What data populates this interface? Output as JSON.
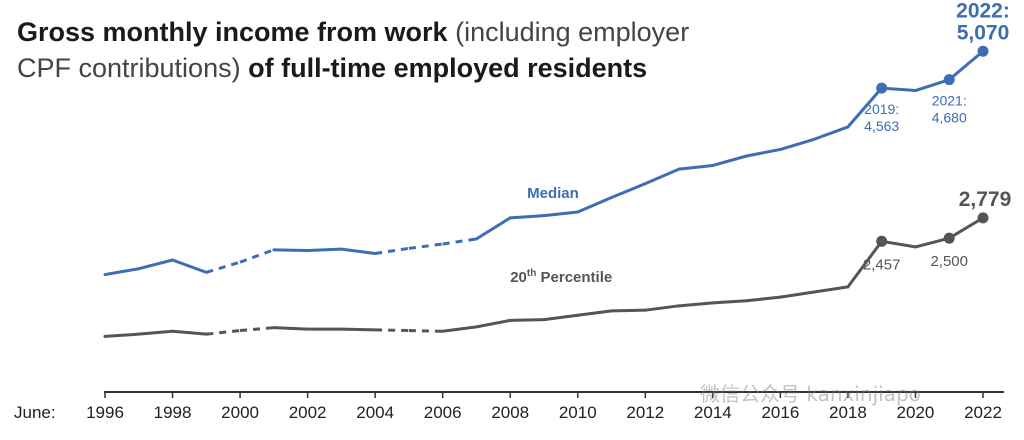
{
  "title": {
    "part1": "Gross monthly income from work",
    "part2": " (including employer CPF contributions) ",
    "part3": "of full-time employed residents"
  },
  "watermark": "微信公众号 kanxinjiapo",
  "chart_data": {
    "type": "line",
    "title": "Gross monthly income from work (including employer CPF contributions) of full-time employed residents",
    "x_axis_label": "June:",
    "tick_labels": [
      "1996",
      "1998",
      "2000",
      "2002",
      "2004",
      "2006",
      "2008",
      "2010",
      "2012",
      "2014",
      "2016",
      "2018",
      "2020",
      "2022"
    ],
    "xlim": [
      1996,
      2022
    ],
    "ylim": [
      0,
      5500
    ],
    "grid": false,
    "series": [
      {
        "name": "Median",
        "color": "#3d6db3",
        "x": [
          1996,
          1997,
          1998,
          1999,
          2000,
          2001,
          2002,
          2003,
          2004,
          2005,
          2006,
          2007,
          2008,
          2009,
          2010,
          2011,
          2012,
          2013,
          2014,
          2015,
          2016,
          2017,
          2018,
          2019,
          2020,
          2021,
          2022
        ],
        "values": [
          2000,
          2080,
          2200,
          2030,
          2170,
          2340,
          2330,
          2350,
          2290,
          2360,
          2420,
          2490,
          2780,
          2810,
          2860,
          3060,
          3250,
          3450,
          3500,
          3630,
          3720,
          3860,
          4030,
          4563,
          4530,
          4680,
          5070
        ],
        "dashed_segments": [
          [
            1999,
            2001
          ],
          [
            2004,
            2007
          ]
        ],
        "markers": [
          {
            "x": 2019,
            "label_year": "2019:",
            "label_value": "4,563",
            "pos": "below"
          },
          {
            "x": 2021,
            "label_year": "2021:",
            "label_value": "4,680",
            "pos": "below"
          },
          {
            "x": 2022,
            "label_year": "2022:",
            "label_value": "5,070",
            "pos": "above"
          }
        ]
      },
      {
        "name": "20th Percentile",
        "name_base": "20",
        "name_sup": "th",
        "name_rest": " Percentile",
        "color": "#555555",
        "x": [
          1996,
          1997,
          1998,
          1999,
          2000,
          2001,
          2002,
          2003,
          2004,
          2005,
          2006,
          2007,
          2008,
          2009,
          2010,
          2011,
          2012,
          2013,
          2014,
          2015,
          2016,
          2017,
          2018,
          2019,
          2020,
          2021,
          2022
        ],
        "values": [
          1150,
          1180,
          1220,
          1180,
          1230,
          1270,
          1250,
          1250,
          1240,
          1230,
          1220,
          1280,
          1370,
          1380,
          1440,
          1500,
          1510,
          1570,
          1610,
          1640,
          1690,
          1760,
          1830,
          2457,
          2380,
          2500,
          2779
        ],
        "dashed_segments": [
          [
            1999,
            2001
          ],
          [
            2004,
            2006
          ]
        ],
        "markers": [
          {
            "x": 2019,
            "label_value": "2,457",
            "pos": "below"
          },
          {
            "x": 2021,
            "label_value": "2,500",
            "pos": "below"
          },
          {
            "x": 2022,
            "label_value": "2,779",
            "pos": "above"
          }
        ]
      }
    ]
  }
}
